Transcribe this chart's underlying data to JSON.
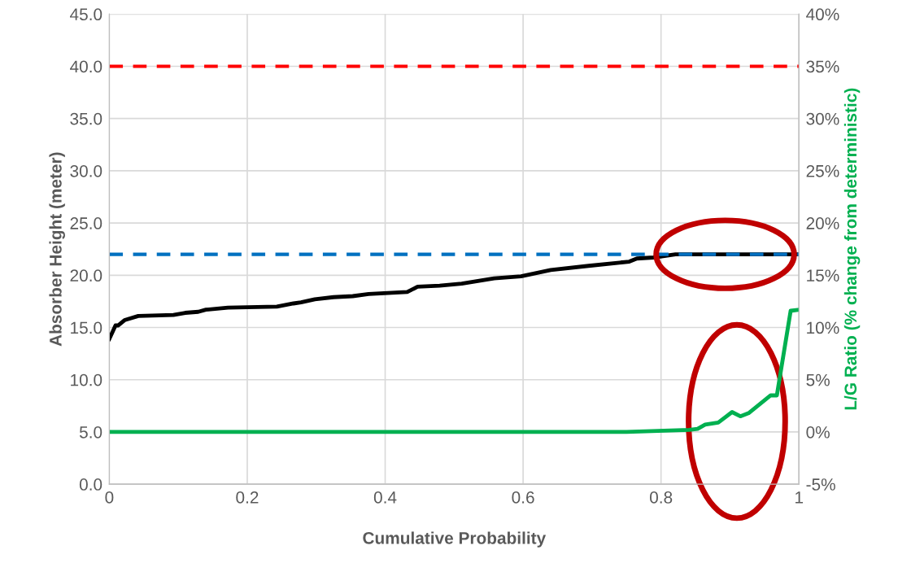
{
  "chart_data": {
    "type": "line",
    "xlabel": "Cumulative Probability",
    "ylabel": "Absorber Height (meter)",
    "y2label": "L/G Ratio (% change from deterministic)",
    "series": [
      {
        "color": "#000000",
        "x": [
          0,
          0.009,
          0.013,
          0.022,
          0.042,
          0.093,
          0.11,
          0.129,
          0.14,
          0.172,
          0.243,
          0.267,
          0.278,
          0.298,
          0.325,
          0.353,
          0.376,
          0.432,
          0.447,
          0.479,
          0.511,
          0.558,
          0.597,
          0.64,
          0.695,
          0.754,
          0.765,
          0.789,
          0.821,
          1.0
        ],
        "values": [
          13.9,
          15.2,
          15.2,
          15.7,
          16.1,
          16.2,
          16.4,
          16.5,
          16.7,
          16.9,
          17.0,
          17.3,
          17.4,
          17.7,
          17.9,
          18.0,
          18.2,
          18.4,
          18.9,
          19.0,
          19.2,
          19.7,
          19.9,
          20.5,
          20.9,
          21.3,
          21.6,
          21.7,
          22.0,
          22.0
        ]
      },
      {
        "color": "#00b050",
        "axis": "y2",
        "x": [
          0,
          0.75,
          0.841,
          0.853,
          0.864,
          0.883,
          0.903,
          0.915,
          0.927,
          0.959,
          0.968,
          0.988,
          1.0
        ],
        "values": [
          0,
          0,
          0.2,
          0.3,
          0.7,
          0.9,
          1.9,
          1.5,
          1.8,
          3.5,
          3.5,
          11.6,
          11.7
        ]
      }
    ],
    "ref_lines": [
      {
        "axis": "y",
        "value": 40.0,
        "color": "#ff0000",
        "line_style": "dashed"
      },
      {
        "axis": "y",
        "value": 22.0,
        "color": "#0070c0",
        "line_style": "dashed"
      }
    ],
    "xlim": [
      0,
      1
    ],
    "xticks": [
      0,
      0.2,
      0.4,
      0.6,
      0.8,
      1
    ],
    "ylim": [
      0,
      45
    ],
    "yticks": [
      {
        "value": 0,
        "label": "0.0"
      },
      {
        "value": 5,
        "label": "5.0"
      },
      {
        "value": 10,
        "label": "10.0"
      },
      {
        "value": 15,
        "label": "15.0"
      },
      {
        "value": 20,
        "label": "20.0"
      },
      {
        "value": 25,
        "label": "25.0"
      },
      {
        "value": 30,
        "label": "30.0"
      },
      {
        "value": 35,
        "label": "35.0"
      },
      {
        "value": 40,
        "label": "40.0"
      },
      {
        "value": 45,
        "label": "45.0"
      }
    ],
    "y2lim": [
      -5,
      40
    ],
    "y2ticks": [
      {
        "value": -5,
        "label": "-5%"
      },
      {
        "value": 0,
        "label": "0%"
      },
      {
        "value": 5,
        "label": "5%"
      },
      {
        "value": 10,
        "label": "10%"
      },
      {
        "value": 15,
        "label": "15%"
      },
      {
        "value": 20,
        "label": "20%"
      },
      {
        "value": 25,
        "label": "25%"
      },
      {
        "value": 30,
        "label": "30%"
      },
      {
        "value": 35,
        "label": "35%"
      },
      {
        "value": 40,
        "label": "40%"
      }
    ],
    "grid": true,
    "line_style": "solid",
    "marker": "none"
  }
}
